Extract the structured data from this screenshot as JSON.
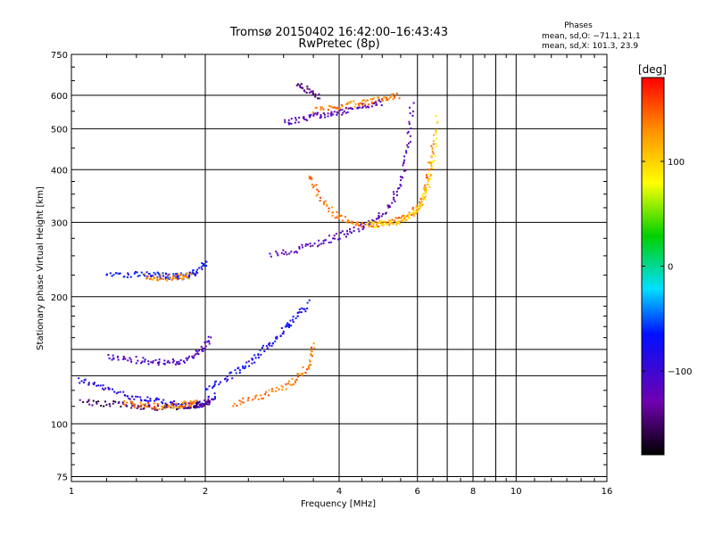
{
  "chart_data": {
    "type": "scatter",
    "title": "Tromsø 20150402 16:42:00–16:43:43",
    "subtitle": "RwPretec (8p)",
    "xlabel": "Frequency [MHz]",
    "ylabel": "Stationary phase Virtual Height [km]",
    "x_scale": "log",
    "y_scale": "log",
    "xlim": [
      1,
      16
    ],
    "ylim": [
      73,
      750
    ],
    "x_ticks": [
      "1",
      "2",
      "4",
      "6",
      "8",
      "10",
      "16"
    ],
    "x_tick_values": [
      1,
      2,
      4,
      6,
      8,
      10,
      16
    ],
    "y_ticks": [
      "75",
      "100",
      "200",
      "300",
      "400",
      "500",
      "600",
      "750"
    ],
    "y_tick_values": [
      75,
      100,
      200,
      300,
      400,
      500,
      600,
      750
    ],
    "grid": true,
    "stats": {
      "heading": "Phases",
      "line_o": "mean, sd,O: −71.1, 21.1",
      "line_x": "mean, sd,X: 101.3, 23.9"
    },
    "colorbar": {
      "label": "[deg]",
      "min": -180,
      "max": 180,
      "ticks": [
        "100",
        "0",
        "−100"
      ],
      "tick_values": [
        100,
        0,
        -100
      ]
    },
    "traces": [
      {
        "x": [
          1.03,
          1.15,
          1.3,
          1.45,
          1.6,
          1.75,
          1.9,
          2.0,
          2.1
        ],
        "y": [
          128,
          123,
          118,
          115,
          113,
          111,
          111,
          113,
          117
        ],
        "phase": -90
      },
      {
        "x": [
          1.05,
          1.2,
          1.35,
          1.5,
          1.7,
          1.85,
          1.95,
          2.05
        ],
        "y": [
          113,
          112,
          111,
          110,
          110,
          111,
          112,
          114
        ],
        "phase": -150
      },
      {
        "x": [
          1.3,
          1.45,
          1.6,
          1.75,
          1.85,
          1.9
        ],
        "y": [
          112,
          111,
          110,
          111,
          112,
          113
        ],
        "phase": 140
      },
      {
        "x": [
          1.2,
          1.35,
          1.5,
          1.65,
          1.8,
          1.95,
          2.05
        ],
        "y": [
          145,
          143,
          141,
          140,
          142,
          150,
          162
        ],
        "phase": -110
      },
      {
        "x": [
          1.2,
          1.35,
          1.5,
          1.6,
          1.7,
          1.8,
          1.9,
          2.0
        ],
        "y": [
          228,
          227,
          226,
          225,
          224,
          225,
          230,
          243
        ],
        "phase": -70
      },
      {
        "x": [
          1.45,
          1.6,
          1.75,
          1.85
        ],
        "y": [
          224,
          223,
          224,
          226
        ],
        "phase": 130
      },
      {
        "x": [
          2.0,
          2.2,
          2.4,
          2.6,
          2.8,
          3.0,
          3.2,
          3.4
        ],
        "y": [
          120,
          128,
          136,
          145,
          156,
          168,
          180,
          195
        ],
        "phase": -75
      },
      {
        "x": [
          2.3,
          2.6,
          2.9,
          3.2,
          3.4,
          3.5
        ],
        "y": [
          112,
          116,
          121,
          128,
          138,
          155
        ],
        "phase": 140
      },
      {
        "x": [
          2.8,
          3.2,
          3.6,
          4.0,
          4.4,
          4.8,
          5.2,
          5.5,
          5.7,
          5.8
        ],
        "y": [
          252,
          260,
          270,
          280,
          292,
          305,
          330,
          380,
          460,
          580
        ],
        "phase": -120
      },
      {
        "x": [
          3.4,
          3.6,
          3.9,
          4.2,
          4.6,
          5.0,
          5.4,
          5.8,
          6.1,
          6.3,
          6.5
        ],
        "y": [
          390,
          345,
          315,
          302,
          298,
          300,
          305,
          315,
          340,
          390,
          470
        ],
        "phase": 140
      },
      {
        "x": [
          4.6,
          5.0,
          5.4,
          5.8,
          6.1,
          6.3,
          6.5,
          6.6
        ],
        "y": [
          298,
          298,
          303,
          312,
          335,
          370,
          430,
          540
        ],
        "phase": 100
      },
      {
        "x": [
          3.0,
          3.3,
          3.6,
          3.9,
          4.2,
          4.6,
          5.0
        ],
        "y": [
          520,
          530,
          540,
          548,
          558,
          570,
          580
        ],
        "phase": -120
      },
      {
        "x": [
          3.5,
          3.9,
          4.3,
          4.7,
          5.1,
          5.4
        ],
        "y": [
          555,
          565,
          575,
          585,
          595,
          600
        ],
        "phase": 135
      },
      {
        "x": [
          3.2,
          3.4,
          3.6
        ],
        "y": [
          640,
          620,
          600
        ],
        "phase": -140
      }
    ]
  }
}
